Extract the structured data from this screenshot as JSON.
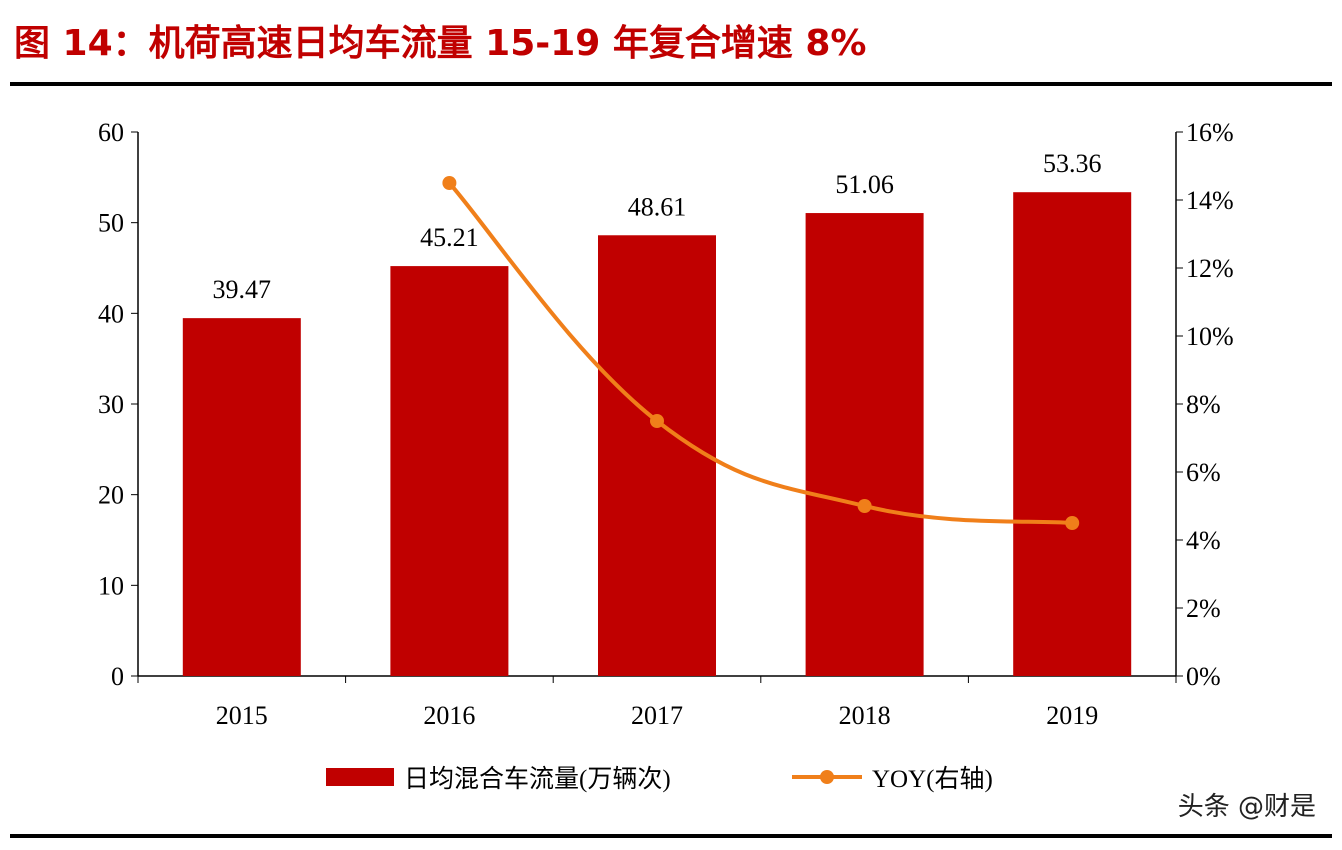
{
  "title": "图  14：机荷高速日均车流量 15-19 年复合增速 8%",
  "watermark": "头条 @财是",
  "chart_data": {
    "type": "bar+line",
    "categories": [
      "2015",
      "2016",
      "2017",
      "2018",
      "2019"
    ],
    "series": [
      {
        "name": "日均混合车流量(万辆次)",
        "type": "bar",
        "axis": "left",
        "values": [
          39.47,
          45.21,
          48.61,
          51.06,
          53.36
        ],
        "color": "#c00000",
        "data_labels": [
          "39.47",
          "45.21",
          "48.61",
          "51.06",
          "53.36"
        ]
      },
      {
        "name": "YOY(右轴)",
        "type": "line",
        "axis": "right",
        "values": [
          null,
          14.5,
          7.5,
          5.0,
          4.5
        ],
        "color": "#f07f1a"
      }
    ],
    "y_left": {
      "range": [
        0,
        60
      ],
      "ticks": [
        "0",
        "10",
        "20",
        "30",
        "40",
        "50",
        "60"
      ]
    },
    "y_right": {
      "range": [
        0,
        16
      ],
      "unit": "%",
      "ticks": [
        "0%",
        "2%",
        "4%",
        "6%",
        "8%",
        "10%",
        "12%",
        "14%",
        "16%"
      ]
    },
    "grid": false,
    "legend": "bottom"
  }
}
